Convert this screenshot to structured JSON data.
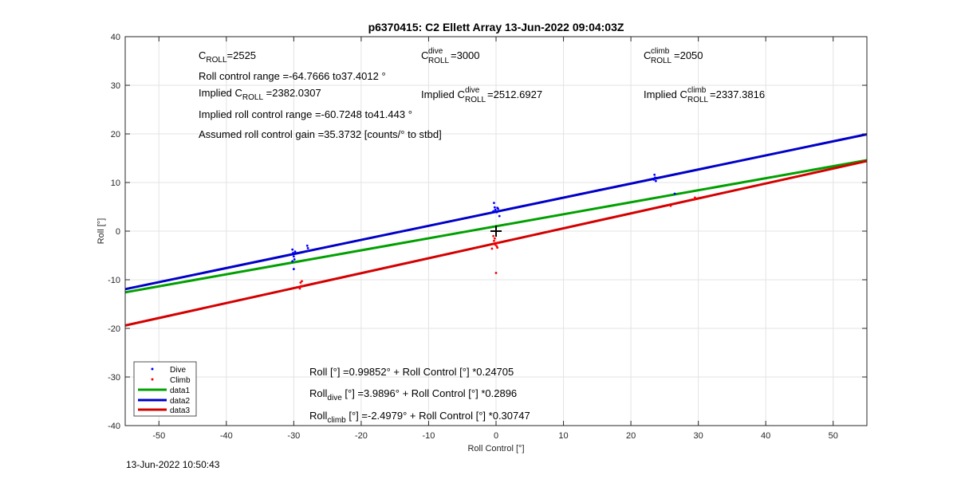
{
  "chart_data": {
    "type": "scatter",
    "title": "p6370415: C2 Ellett Array 13-Jun-2022 09:04:03Z",
    "xlabel": "Roll Control [°]",
    "ylabel": "Roll [°]",
    "xlim": [
      -55,
      55
    ],
    "ylim": [
      -40,
      40
    ],
    "xticks": [
      -50,
      -40,
      -30,
      -20,
      -10,
      0,
      10,
      20,
      30,
      40,
      50
    ],
    "yticks": [
      -40,
      -30,
      -20,
      -10,
      0,
      10,
      20,
      30,
      40
    ],
    "grid": true,
    "legend_position": "bottom-left",
    "series": [
      {
        "name": "Dive",
        "kind": "points",
        "color": "#0000ff",
        "points": [
          [
            -30.2,
            -3.8
          ],
          [
            -30.1,
            -4.5
          ],
          [
            -30.0,
            -5.2
          ],
          [
            -29.9,
            -5.8
          ],
          [
            -30.2,
            -6.2
          ],
          [
            -30.0,
            -7.8
          ],
          [
            -29.8,
            -4.2
          ],
          [
            -28.0,
            -3.0
          ],
          [
            -27.9,
            -3.5
          ],
          [
            -0.3,
            5.8
          ],
          [
            -0.2,
            4.9
          ],
          [
            -0.1,
            4.4
          ],
          [
            0.1,
            3.9
          ],
          [
            0.3,
            4.6
          ],
          [
            0.5,
            3.1
          ],
          [
            -0.4,
            4.1
          ],
          [
            0.2,
            4.8
          ],
          [
            23.5,
            11.6
          ],
          [
            23.6,
            11.0
          ],
          [
            23.7,
            10.3
          ],
          [
            23.4,
            10.6
          ],
          [
            26.5,
            7.7
          ]
        ]
      },
      {
        "name": "Climb",
        "kind": "points",
        "color": "#ff0000",
        "points": [
          [
            -29.0,
            -10.6
          ],
          [
            -28.9,
            -11.3
          ],
          [
            -29.1,
            -11.8
          ],
          [
            -28.8,
            -10.3
          ],
          [
            -0.4,
            -1.0
          ],
          [
            -0.3,
            -2.0
          ],
          [
            -0.1,
            -2.8
          ],
          [
            0.1,
            -3.1
          ],
          [
            -0.6,
            -3.6
          ],
          [
            0.3,
            -2.4
          ],
          [
            -0.2,
            -1.5
          ],
          [
            0.2,
            -3.4
          ],
          [
            0.0,
            -8.6
          ],
          [
            25.9,
            5.2
          ],
          [
            29.5,
            6.9
          ],
          [
            29.4,
            6.5
          ]
        ]
      },
      {
        "name": "data1",
        "kind": "line",
        "color": "#00a000",
        "intercept": 0.99852,
        "slope": 0.24705
      },
      {
        "name": "data2",
        "kind": "line",
        "color": "#0000c8",
        "intercept": 3.9896,
        "slope": 0.2896
      },
      {
        "name": "data3",
        "kind": "line",
        "color": "#d40000",
        "intercept": -2.4979,
        "slope": 0.30747
      }
    ],
    "marker": {
      "x": 0,
      "y": 0,
      "symbol": "+"
    },
    "annotations": {
      "c_roll": {
        "base": "C",
        "sub": "ROLL",
        "text": "=2525"
      },
      "roll_range": "Roll control range =-64.7666 to37.4012 °",
      "implied_c_roll": {
        "pre": "Implied C",
        "sub": "ROLL",
        "text": " =2382.0307"
      },
      "implied_range": "Implied roll control range =-60.7248 to41.443 °",
      "gain": "Assumed roll control gain =35.3732 [counts/° to stbd]",
      "c_dive": {
        "base": "C",
        "sup": "dive",
        "sub": "ROLL",
        "text": " =3000"
      },
      "implied_c_dive": {
        "pre": "Implied C",
        "sup": "dive",
        "sub": "ROLL",
        "text": " =2512.6927"
      },
      "c_climb": {
        "base": "C",
        "sup": "climb",
        "sub": "ROLL",
        "text": " =2050"
      },
      "implied_c_climb": {
        "pre": "Implied C",
        "sup": "climb",
        "sub": "ROLL",
        "text": " =2337.3816"
      },
      "fit_all": "Roll [°] =0.99852° + Roll Control [°] *0.24705",
      "fit_dive": {
        "pre": "Roll",
        "sub": "dive",
        "text": " [°] =3.9896° + Roll Control [°] *0.2896"
      },
      "fit_climb": {
        "pre": "Roll",
        "sub": "climb",
        "text": " [°] =-2.4979° + Roll Control [°] *0.30747"
      }
    }
  },
  "footer": {
    "timestamp": "13-Jun-2022 10:50:43"
  }
}
